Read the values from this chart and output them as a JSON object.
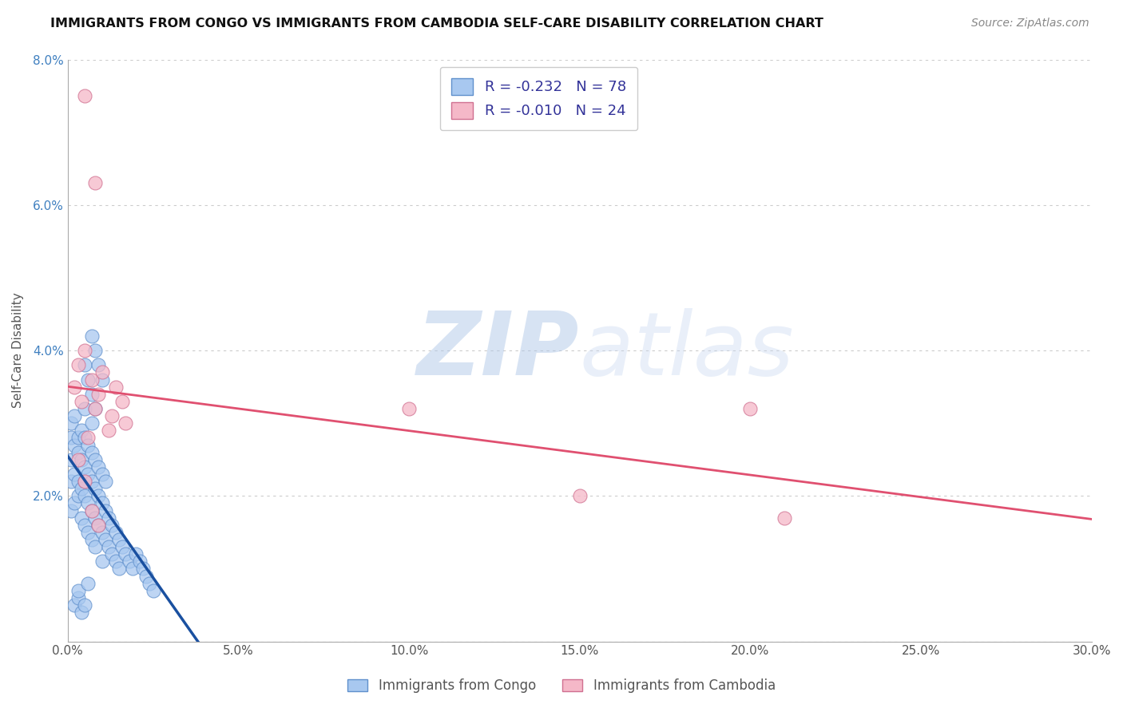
{
  "title": "IMMIGRANTS FROM CONGO VS IMMIGRANTS FROM CAMBODIA SELF-CARE DISABILITY CORRELATION CHART",
  "source": "Source: ZipAtlas.com",
  "ylabel": "Self-Care Disability",
  "xlim": [
    0.0,
    0.3
  ],
  "ylim": [
    0.0,
    0.08
  ],
  "xtick_labels": [
    "0.0%",
    "5.0%",
    "10.0%",
    "15.0%",
    "20.0%",
    "25.0%",
    "30.0%"
  ],
  "ytick_labels": [
    "",
    "2.0%",
    "4.0%",
    "6.0%",
    "8.0%"
  ],
  "congo_color": "#A8C8F0",
  "cambodia_color": "#F5B8C8",
  "congo_edge": "#6090CC",
  "cambodia_edge": "#D07090",
  "trend_congo_color": "#1A50A0",
  "trend_cambodia_color": "#E05070",
  "R_congo": -0.232,
  "N_congo": 78,
  "R_cambodia": -0.01,
  "N_cambodia": 24,
  "watermark_zip": "ZIP",
  "watermark_atlas": "atlas",
  "legend_label1": "R = -0.232   N = 78",
  "legend_label2": "R = -0.010   N = 24",
  "bottom_label1": "Immigrants from Congo",
  "bottom_label2": "Immigrants from Cambodia",
  "congo_x": [
    0.001,
    0.001,
    0.001,
    0.001,
    0.001,
    0.002,
    0.002,
    0.002,
    0.002,
    0.003,
    0.003,
    0.003,
    0.003,
    0.004,
    0.004,
    0.004,
    0.004,
    0.005,
    0.005,
    0.005,
    0.005,
    0.005,
    0.005,
    0.006,
    0.006,
    0.006,
    0.006,
    0.007,
    0.007,
    0.007,
    0.007,
    0.007,
    0.008,
    0.008,
    0.008,
    0.008,
    0.009,
    0.009,
    0.009,
    0.01,
    0.01,
    0.01,
    0.01,
    0.011,
    0.011,
    0.011,
    0.012,
    0.012,
    0.013,
    0.013,
    0.014,
    0.014,
    0.015,
    0.015,
    0.016,
    0.017,
    0.018,
    0.019,
    0.02,
    0.021,
    0.022,
    0.023,
    0.024,
    0.025,
    0.005,
    0.006,
    0.007,
    0.007,
    0.008,
    0.008,
    0.009,
    0.01,
    0.002,
    0.003,
    0.004,
    0.003,
    0.005,
    0.006
  ],
  "congo_y": [
    0.028,
    0.025,
    0.03,
    0.022,
    0.018,
    0.027,
    0.023,
    0.031,
    0.019,
    0.026,
    0.022,
    0.028,
    0.02,
    0.025,
    0.021,
    0.029,
    0.017,
    0.024,
    0.02,
    0.028,
    0.016,
    0.022,
    0.032,
    0.023,
    0.019,
    0.027,
    0.015,
    0.022,
    0.018,
    0.026,
    0.014,
    0.03,
    0.021,
    0.017,
    0.025,
    0.013,
    0.02,
    0.016,
    0.024,
    0.019,
    0.015,
    0.023,
    0.011,
    0.018,
    0.014,
    0.022,
    0.017,
    0.013,
    0.016,
    0.012,
    0.015,
    0.011,
    0.014,
    0.01,
    0.013,
    0.012,
    0.011,
    0.01,
    0.012,
    0.011,
    0.01,
    0.009,
    0.008,
    0.007,
    0.038,
    0.036,
    0.042,
    0.034,
    0.04,
    0.032,
    0.038,
    0.036,
    0.005,
    0.006,
    0.004,
    0.007,
    0.005,
    0.008
  ],
  "cambodia_x": [
    0.002,
    0.003,
    0.004,
    0.005,
    0.006,
    0.007,
    0.008,
    0.009,
    0.01,
    0.012,
    0.013,
    0.014,
    0.016,
    0.017,
    0.003,
    0.005,
    0.007,
    0.009,
    0.1,
    0.15,
    0.2,
    0.21,
    0.005,
    0.008
  ],
  "cambodia_y": [
    0.035,
    0.038,
    0.033,
    0.04,
    0.028,
    0.036,
    0.032,
    0.034,
    0.037,
    0.029,
    0.031,
    0.035,
    0.033,
    0.03,
    0.025,
    0.022,
    0.018,
    0.016,
    0.032,
    0.02,
    0.032,
    0.017,
    0.075,
    0.063
  ]
}
